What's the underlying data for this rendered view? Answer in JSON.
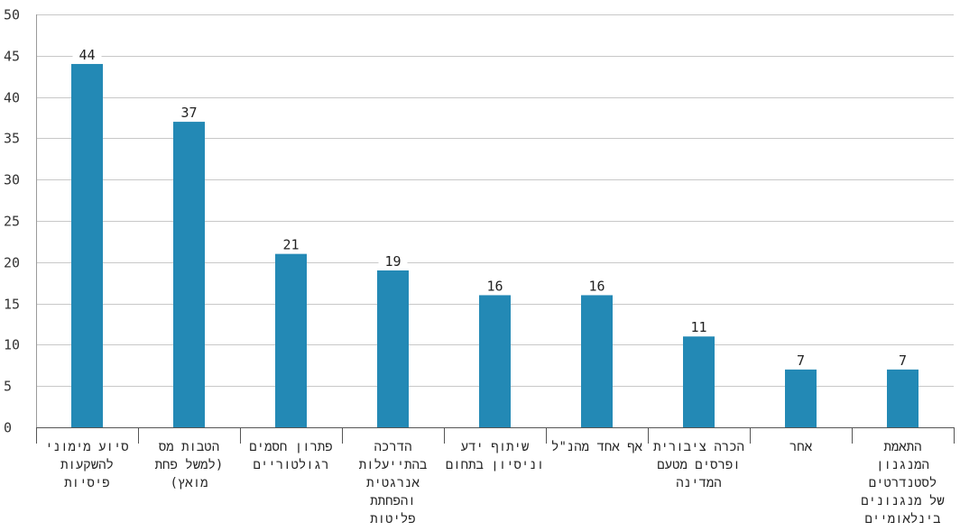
{
  "chart_data": {
    "type": "bar",
    "title": "",
    "xlabel": "",
    "ylabel": "",
    "ylim": [
      0,
      50
    ],
    "yticks": [
      0,
      5,
      10,
      15,
      20,
      25,
      30,
      35,
      40,
      45,
      50
    ],
    "grid": true,
    "bar_color": "#2389b5",
    "categories": [
      [
        "סיוע מימוני",
        "להשקעות",
        "פיסיות"
      ],
      [
        "הטבות מס",
        "(למשל פחת",
        "מואץ)"
      ],
      [
        "פתרון חסמים",
        "רגולטוריים"
      ],
      [
        "הדרכה",
        "בהתייעלות",
        "אנרגטית",
        "והפחתת",
        "פליטות"
      ],
      [
        "שיתוף ידע",
        "וניסיון בתחום"
      ],
      [
        "אף אחד מהנ\"ל"
      ],
      [
        "הכרה ציבורית",
        "ופרסים מטעם",
        "המדינה"
      ],
      [
        "אחר"
      ],
      [
        "התאמת",
        "המנגנון",
        "לסטנדרטים",
        "של מנגנונים",
        "בינלאומיים"
      ]
    ],
    "values": [
      44,
      37,
      21,
      19,
      16,
      16,
      11,
      7,
      7
    ]
  }
}
